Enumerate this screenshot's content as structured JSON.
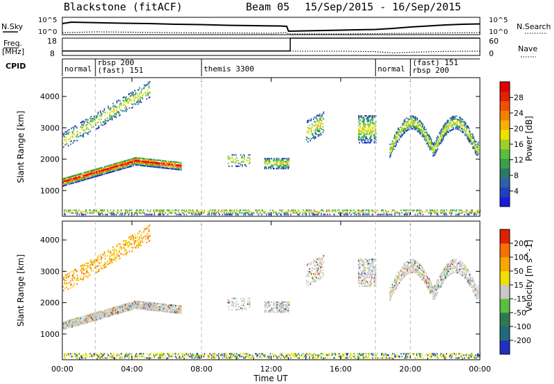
{
  "header": {
    "station": "Blackstone (fitACF)",
    "beam": "Beam 05",
    "dates": "15/Sep/2015 - 16/Sep/2015"
  },
  "noise_panel": {
    "left_label": "N.Sky",
    "left_ticks": [
      "10^5",
      "10^0"
    ],
    "right_label": "N.Search",
    "right_ticks": [
      "10^5",
      "10^0"
    ]
  },
  "freq_panel": {
    "left_label_top": "Freq.",
    "left_label_bottom": "[MHz]",
    "left_ticks": [
      "18",
      "8"
    ],
    "right_label": "Nave",
    "right_ticks": [
      "60",
      "0"
    ]
  },
  "cpid": {
    "label": "CPID",
    "segments": [
      {
        "start_hr": 0,
        "lines": [
          "normal"
        ]
      },
      {
        "start_hr": 1.9,
        "lines": [
          "rbsp 200",
          "(fast) 151"
        ]
      },
      {
        "start_hr": 8,
        "lines": [
          "themis 3300"
        ]
      },
      {
        "start_hr": 18,
        "lines": [
          "normal"
        ]
      },
      {
        "start_hr": 20,
        "lines": [
          "(fast) 151",
          "rbsp 200"
        ]
      }
    ]
  },
  "x_axis": {
    "label": "Time UT",
    "ticks": [
      "00:00",
      "04:00",
      "08:00",
      "12:00",
      "16:00",
      "20:00",
      "00:00"
    ]
  },
  "power_panel": {
    "ylabel": "Slant Range [km]",
    "yticks": [
      "1000",
      "2000",
      "3000",
      "4000"
    ],
    "colorbar_label": "Power [dB]",
    "colorbar_ticks": [
      "4",
      "8",
      "12",
      "16",
      "20",
      "24",
      "28"
    ],
    "colors": [
      "#1a1ae0",
      "#2040c0",
      "#3060a8",
      "#2a7a68",
      "#3aa048",
      "#58c040",
      "#a0d028",
      "#f0e000",
      "#f8b000",
      "#f88000",
      "#f05000",
      "#e02000",
      "#e00000"
    ]
  },
  "velocity_panel": {
    "ylabel": "Slant Range [km]",
    "yticks": [
      "1000",
      "2000",
      "3000",
      "4000"
    ],
    "colorbar_label": "Velocity [m s^-1]",
    "colorbar_ticks": [
      "200",
      "100",
      "50",
      "15",
      "-15",
      "-50",
      "-100",
      "-200"
    ],
    "colors": [
      "#2030c0",
      "#1f6a80",
      "#2e7a50",
      "#58c040",
      "#c8c8c8",
      "#f0e000",
      "#f8a800",
      "#f87000",
      "#e02000"
    ]
  },
  "chart_data": {
    "type": "heatmap",
    "x_range_hr": [
      0,
      24
    ],
    "y_range_km": [
      180,
      4600
    ],
    "noise_sky": [
      [
        0,
        3.2
      ],
      [
        0.5,
        3.6
      ],
      [
        1.5,
        3.5
      ],
      [
        2.5,
        3.4
      ],
      [
        3.5,
        3.3
      ],
      [
        5,
        3.2
      ],
      [
        6.5,
        3.0
      ],
      [
        8,
        2.9
      ],
      [
        9.5,
        2.7
      ],
      [
        11,
        2.6
      ],
      [
        12.5,
        2.5
      ],
      [
        12.9,
        2.4
      ],
      [
        13.0,
        1.0
      ],
      [
        14,
        1.1
      ],
      [
        16,
        1.3
      ],
      [
        18,
        1.5
      ],
      [
        19,
        1.8
      ],
      [
        20,
        2.2
      ],
      [
        21,
        2.5
      ],
      [
        22,
        2.8
      ],
      [
        23,
        3.0
      ],
      [
        24,
        3.1
      ]
    ],
    "noise_search": [
      [
        0,
        0.6
      ],
      [
        2,
        0.8
      ],
      [
        4,
        0.7
      ],
      [
        6,
        0.6
      ],
      [
        8,
        0.5
      ],
      [
        10,
        0.5
      ],
      [
        12,
        0.4
      ],
      [
        12.9,
        0.6
      ],
      [
        13,
        0.2
      ],
      [
        16,
        0.2
      ],
      [
        18,
        0.3
      ],
      [
        20,
        0.4
      ],
      [
        22,
        0.5
      ],
      [
        24,
        0.6
      ]
    ],
    "freq_mhz": [
      [
        0,
        10.6
      ],
      [
        13.1,
        10.6
      ],
      [
        13.1,
        18
      ],
      [
        24,
        18
      ]
    ],
    "nave": [
      [
        0,
        15
      ],
      [
        16,
        15
      ],
      [
        18,
        13
      ],
      [
        19,
        9
      ],
      [
        20,
        11
      ],
      [
        22,
        14
      ],
      [
        24,
        15
      ]
    ]
  }
}
